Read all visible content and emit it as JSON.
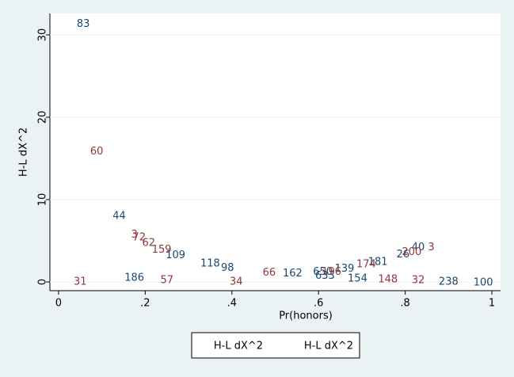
{
  "chart_data": {
    "type": "scatter",
    "xlabel": "Pr(honors)",
    "ylabel": "H-L dX^2",
    "xlim": [
      -0.02,
      1.02
    ],
    "ylim": [
      -1.06,
      32.6
    ],
    "xticks": [
      0,
      {
        "value": 0.2,
        "label": ".2"
      },
      {
        "value": 0.4,
        "label": ".4"
      },
      {
        "value": 0.6,
        "label": ".6"
      },
      {
        "value": 0.8,
        "label": ".8"
      },
      1
    ],
    "yticks": [
      0,
      10,
      20,
      30
    ],
    "grid": true,
    "legend": "bottom",
    "series": [
      {
        "name": "H-L dX^2",
        "color": "#1a476f",
        "x": [
          0.057,
          0.14,
          0.27,
          0.35,
          0.39,
          0.54,
          0.61,
          0.615,
          0.66,
          0.737,
          0.795,
          0.83,
          0.175,
          0.69,
          0.9,
          0.98
        ],
        "values": [
          31.3,
          8.0,
          3.2,
          2.2,
          1.7,
          1.0,
          1.2,
          0.7,
          1.6,
          2.4,
          3.3,
          4.2,
          0.5,
          0.4,
          0.0,
          -0.1
        ],
        "labels": [
          "83",
          "44",
          "109",
          "118",
          "98",
          "162",
          "650",
          "633",
          "139",
          "181",
          "26",
          "40",
          "186",
          "154",
          "238",
          "100"
        ]
      },
      {
        "name": "H-L dX^2",
        "color": "#90353b",
        "x": [
          0.088,
          0.175,
          0.186,
          0.208,
          0.238,
          0.486,
          0.63,
          0.71,
          0.815,
          0.86,
          0.25,
          0.41,
          0.76,
          0.83,
          0.05
        ],
        "values": [
          15.8,
          5.7,
          5.4,
          4.7,
          3.9,
          1.1,
          1.2,
          2.1,
          3.6,
          4.2,
          0.2,
          0.0,
          0.3,
          0.2,
          0.0
        ],
        "labels": [
          "60",
          "3",
          "72",
          "62",
          "159",
          "66",
          "196",
          "174",
          "200",
          "3",
          "57",
          "34",
          "148",
          "32",
          "31"
        ]
      }
    ]
  }
}
